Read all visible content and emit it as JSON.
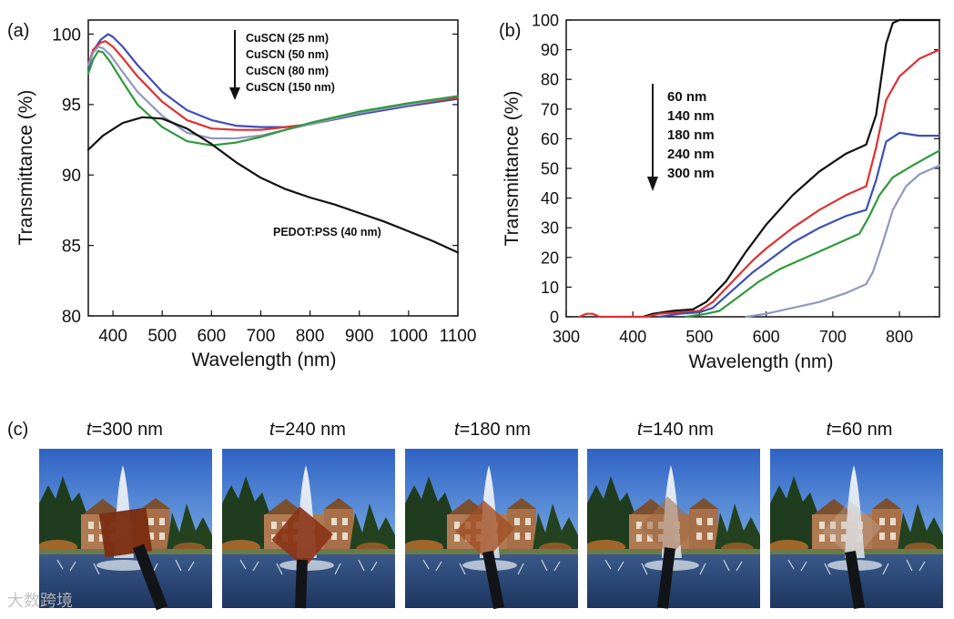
{
  "panels": {
    "a": {
      "label": "(a)"
    },
    "b": {
      "label": "(b)"
    },
    "c": {
      "label": "(c)"
    }
  },
  "chart_data": [
    {
      "id": "panel-a",
      "type": "line",
      "xlabel": "Wavelength (nm)",
      "ylabel": "Transmittance (%)",
      "xlim": [
        350,
        1100
      ],
      "ylim": [
        80,
        101
      ],
      "xticks": [
        400,
        500,
        600,
        700,
        800,
        900,
        1000,
        1100
      ],
      "yticks": [
        80,
        85,
        90,
        95,
        100
      ],
      "legend": {
        "entries": [
          "CuSCN (25 nm)",
          "CuSCN (50 nm)",
          "CuSCN (80 nm)",
          "CuSCN (150 nm)"
        ],
        "arrow": "down"
      },
      "annotations": [
        {
          "text": "PEDOT:PSS (40 nm)",
          "x": 780,
          "y": 86.5
        }
      ],
      "series": [
        {
          "name": "CuSCN (25 nm)",
          "color": "#3d4fb8",
          "x": [
            350,
            360,
            375,
            390,
            400,
            420,
            450,
            500,
            550,
            600,
            650,
            700,
            750,
            800,
            900,
            1000,
            1100
          ],
          "y": [
            97.5,
            98.8,
            99.6,
            100.0,
            99.8,
            99.1,
            97.8,
            95.9,
            94.6,
            93.9,
            93.5,
            93.4,
            93.4,
            93.6,
            94.3,
            94.9,
            95.4
          ]
        },
        {
          "name": "CuSCN (50 nm)",
          "color": "#e03030",
          "x": [
            350,
            360,
            375,
            385,
            400,
            420,
            450,
            500,
            550,
            600,
            650,
            700,
            750,
            800,
            900,
            1000,
            1100
          ],
          "y": [
            97.8,
            98.9,
            99.4,
            99.5,
            99.1,
            98.3,
            97.0,
            95.2,
            93.9,
            93.3,
            93.2,
            93.2,
            93.4,
            93.6,
            94.4,
            95.0,
            95.5
          ]
        },
        {
          "name": "CuSCN (80 nm)",
          "color": "#9098c0",
          "x": [
            350,
            360,
            370,
            380,
            395,
            420,
            450,
            500,
            550,
            600,
            650,
            700,
            750,
            800,
            900,
            1000,
            1100
          ],
          "y": [
            97.8,
            98.7,
            99.1,
            99.0,
            98.5,
            97.3,
            95.9,
            94.2,
            93.0,
            92.6,
            92.6,
            92.8,
            93.2,
            93.6,
            94.4,
            95.0,
            95.6
          ]
        },
        {
          "name": "CuSCN (150 nm)",
          "color": "#2e9a3a",
          "x": [
            350,
            360,
            370,
            380,
            395,
            420,
            450,
            500,
            550,
            600,
            650,
            700,
            750,
            800,
            900,
            1000,
            1100
          ],
          "y": [
            97.2,
            98.2,
            98.8,
            98.7,
            98.0,
            96.6,
            95.0,
            93.4,
            92.4,
            92.1,
            92.3,
            92.7,
            93.2,
            93.7,
            94.5,
            95.1,
            95.6
          ]
        },
        {
          "name": "PEDOT:PSS (40 nm)",
          "color": "#111111",
          "x": [
            350,
            380,
            420,
            460,
            500,
            550,
            600,
            650,
            700,
            750,
            800,
            850,
            900,
            950,
            1000,
            1050,
            1100
          ],
          "y": [
            91.8,
            92.8,
            93.7,
            94.1,
            94.0,
            93.3,
            92.2,
            90.9,
            89.8,
            89.0,
            88.4,
            87.9,
            87.3,
            86.7,
            86.0,
            85.3,
            84.5
          ]
        }
      ]
    },
    {
      "id": "panel-b",
      "type": "line",
      "xlabel": "Wavelength (nm)",
      "ylabel": "Transmittance (%)",
      "xlim": [
        300,
        860
      ],
      "ylim": [
        0,
        100
      ],
      "xticks": [
        300,
        400,
        500,
        600,
        700,
        800
      ],
      "yticks": [
        0,
        10,
        20,
        30,
        40,
        50,
        60,
        70,
        80,
        90,
        100
      ],
      "legend": {
        "entries": [
          "60 nm",
          "140 nm",
          "180 nm",
          "240 nm",
          "300 nm"
        ],
        "arrow": "down"
      },
      "series": [
        {
          "name": "60 nm",
          "color": "#111111",
          "x": [
            415,
            430,
            460,
            490,
            510,
            540,
            570,
            600,
            640,
            680,
            720,
            750,
            765,
            780,
            790,
            800,
            820,
            860
          ],
          "y": [
            0,
            1,
            2,
            2.5,
            5,
            12,
            22,
            31,
            41,
            49,
            55,
            58,
            68,
            92,
            99,
            100,
            100,
            100
          ]
        },
        {
          "name": "140 nm",
          "color": "#e03030",
          "x": [
            320,
            330,
            340,
            350,
            360,
            420,
            440,
            470,
            500,
            520,
            550,
            580,
            600,
            640,
            680,
            720,
            750,
            765,
            780,
            800,
            830,
            860
          ],
          "y": [
            0,
            1,
            1,
            0,
            0,
            0,
            1,
            1.5,
            2,
            5,
            12,
            19,
            23,
            30,
            36,
            41,
            44,
            57,
            73,
            81,
            87,
            90
          ]
        },
        {
          "name": "180 nm",
          "color": "#3d4fb8",
          "x": [
            440,
            470,
            500,
            520,
            550,
            580,
            610,
            640,
            680,
            720,
            750,
            765,
            780,
            800,
            830,
            860
          ],
          "y": [
            0,
            1,
            1.5,
            3,
            9,
            15,
            20,
            25,
            30,
            34,
            36,
            46,
            59,
            62,
            61,
            61
          ]
        },
        {
          "name": "240 nm",
          "color": "#2e9a3a",
          "x": [
            480,
            510,
            530,
            560,
            590,
            620,
            660,
            700,
            740,
            755,
            770,
            790,
            820,
            860
          ],
          "y": [
            0,
            1,
            2,
            7,
            12,
            16,
            20,
            24,
            28,
            34,
            41,
            47,
            51,
            56
          ]
        },
        {
          "name": "300 nm",
          "color": "#9098c0",
          "x": [
            570,
            600,
            640,
            680,
            720,
            750,
            760,
            775,
            790,
            810,
            830,
            860
          ],
          "y": [
            0,
            1,
            3,
            5,
            8,
            11,
            15,
            25,
            36,
            44,
            48,
            51
          ]
        }
      ]
    }
  ],
  "photos": [
    {
      "prefix": "t",
      "suffix": "=300 nm",
      "film": "#7a2c10",
      "opacity": 0.95
    },
    {
      "prefix": "t",
      "suffix": "=240 nm",
      "film": "#8a3316",
      "opacity": 0.9
    },
    {
      "prefix": "t",
      "suffix": "=180 nm",
      "film": "#a24e22",
      "opacity": 0.78
    },
    {
      "prefix": "t",
      "suffix": "=140 nm",
      "film": "#a06a45",
      "opacity": 0.55
    },
    {
      "prefix": "t",
      "suffix": "=60 nm",
      "film": "#c8b7a8",
      "opacity": 0.3
    }
  ],
  "watermark": "大数跨境"
}
